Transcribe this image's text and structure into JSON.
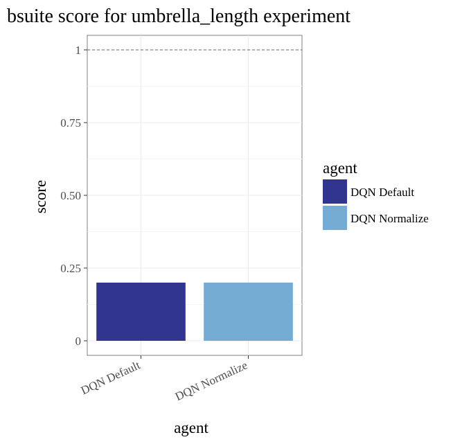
{
  "chart_data": {
    "type": "bar",
    "title": "bsuite score for umbrella_length experiment",
    "xlabel": "agent",
    "ylabel": "score",
    "categories": [
      "DQN Default",
      "DQN Normalize"
    ],
    "values": [
      0.2,
      0.2
    ],
    "ylim": [
      -0.05,
      1.05
    ],
    "yticks": [
      0,
      0.25,
      0.5,
      0.75,
      1
    ],
    "ytick_labels": [
      "0",
      "0.25",
      "0.50",
      "0.75",
      "1"
    ],
    "reference_line": 1,
    "grid": true,
    "legend": {
      "title": "agent",
      "position": "right",
      "entries": [
        "DQN Default",
        "DQN Normalize"
      ]
    },
    "colors": [
      "#31358f",
      "#75acd3"
    ]
  }
}
